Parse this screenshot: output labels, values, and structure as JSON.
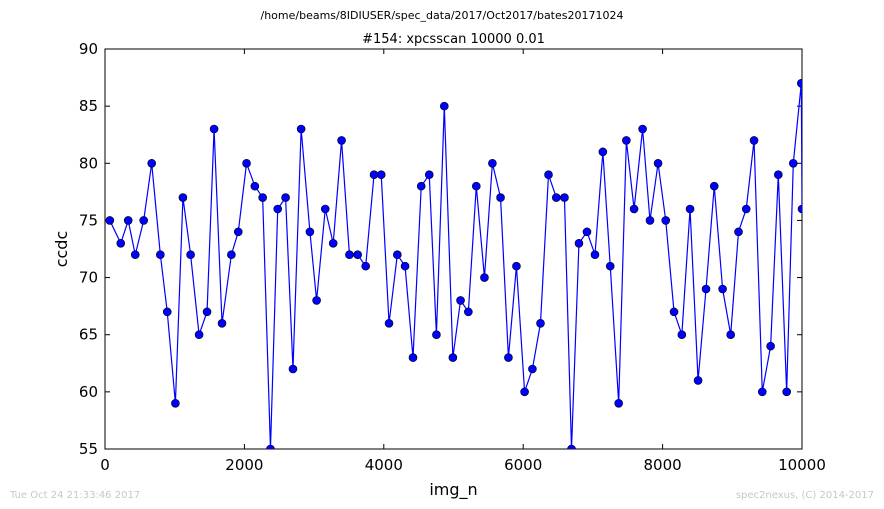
{
  "figure": {
    "suptitle": "/home/beams/8IDIUSER/spec_data/2017/Oct2017/bates20171024",
    "timestamp": "Tue Oct 24 21:33:46 2017",
    "credit": "spec2nexus, (C) 2014-2017"
  },
  "colors": {
    "series": "#0000ff",
    "axes": "#000000",
    "footer": "#c8c8c8"
  },
  "chart_data": {
    "type": "line",
    "title": "#154: xpcsscan 10000 0.01",
    "xlabel": "img_n",
    "ylabel": "ccdc",
    "xlim": [
      0,
      10000
    ],
    "ylim": [
      55,
      90
    ],
    "xticks": [
      0,
      2000,
      4000,
      6000,
      8000,
      10000
    ],
    "yticks": [
      55,
      60,
      65,
      70,
      75,
      80,
      85,
      90
    ],
    "grid": false,
    "marker": "circle",
    "series": [
      {
        "x": [
          69,
          226,
          333,
          434,
          555,
          670,
          794,
          893,
          1010,
          1118,
          1228,
          1350,
          1464,
          1565,
          1679,
          1813,
          1912,
          2031,
          2150,
          2262,
          2374,
          2478,
          2591,
          2697,
          2814,
          2940,
          3036,
          3160,
          3274,
          3394,
          3507,
          3625,
          3740,
          3860,
          3963,
          4075,
          4194,
          4305,
          4419,
          4537,
          4652,
          4755,
          4868,
          4991,
          5101,
          5213,
          5327,
          5444,
          5558,
          5675,
          5788,
          5903,
          6020,
          6132,
          6248,
          6363,
          6475,
          6592,
          6693,
          6800,
          6915,
          7030,
          7143,
          7249,
          7370,
          7480,
          7591,
          7713,
          7819,
          7935,
          8045,
          8164,
          8276,
          8394,
          8509,
          8623,
          8741,
          8861,
          8977,
          9089,
          9200,
          9312,
          9430,
          9550,
          9660,
          9780,
          9875,
          9990,
          10000
        ],
        "y": [
          75,
          73,
          75,
          72,
          75,
          80,
          72,
          67,
          59,
          77,
          72,
          65,
          67,
          83,
          66,
          72,
          74,
          80,
          78,
          77,
          55,
          76,
          77,
          62,
          83,
          74,
          68,
          76,
          73,
          82,
          72,
          72,
          71,
          79,
          79,
          66,
          72,
          71,
          63,
          78,
          79,
          65,
          85,
          63,
          68,
          67,
          78,
          70,
          80,
          77,
          63,
          71,
          60,
          62,
          66,
          79,
          77,
          77,
          55,
          73,
          74,
          72,
          81,
          71,
          59,
          82,
          76,
          83,
          75,
          80,
          75,
          67,
          65,
          76,
          61,
          69,
          78,
          69,
          65,
          74,
          76,
          82,
          60,
          64,
          79,
          60,
          80,
          87,
          76
        ]
      }
    ]
  }
}
